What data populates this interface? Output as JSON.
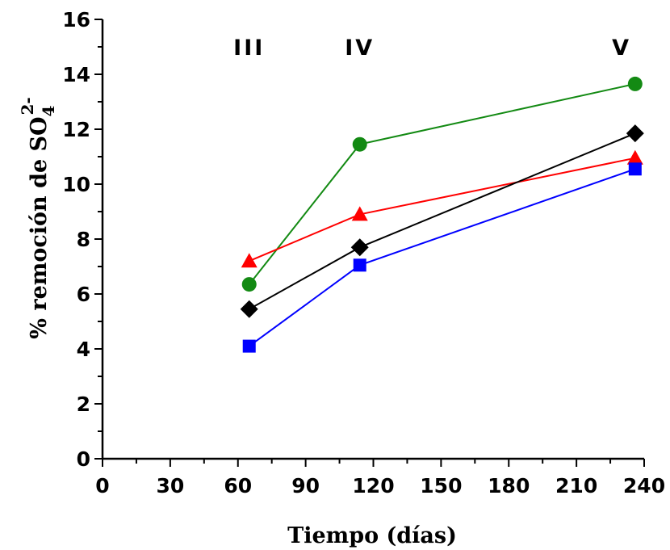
{
  "chart_data": {
    "type": "line",
    "xlabel": "Tiempo (días)",
    "ylabel": {
      "prefix": "% remoción de  SO",
      "subscript": "4",
      "superscript": "2-"
    },
    "xlim": [
      0,
      240
    ],
    "ylim": [
      0,
      16
    ],
    "x_ticks": [
      0,
      30,
      60,
      90,
      120,
      150,
      180,
      210,
      240
    ],
    "y_ticks": [
      0,
      2,
      4,
      6,
      8,
      10,
      12,
      14,
      16
    ],
    "grid": false,
    "legend": "none",
    "annotations": [
      {
        "text": "III",
        "x": 65,
        "y": 14.7
      },
      {
        "text": "IV",
        "x": 114,
        "y": 14.7
      },
      {
        "text": "V",
        "x": 230,
        "y": 14.7
      }
    ],
    "series": [
      {
        "marker": "circle",
        "color": "#138a13",
        "x": [
          65,
          114,
          236
        ],
        "y": [
          6.35,
          11.45,
          13.65
        ]
      },
      {
        "marker": "triangle",
        "color": "#ff0000",
        "x": [
          65,
          114,
          236
        ],
        "y": [
          7.2,
          8.9,
          10.95
        ]
      },
      {
        "marker": "diamond",
        "color": "#000000",
        "x": [
          65,
          114,
          236
        ],
        "y": [
          5.45,
          7.7,
          11.85
        ]
      },
      {
        "marker": "square",
        "color": "#0000ff",
        "x": [
          65,
          114,
          236
        ],
        "y": [
          4.1,
          7.05,
          10.55
        ]
      }
    ]
  }
}
